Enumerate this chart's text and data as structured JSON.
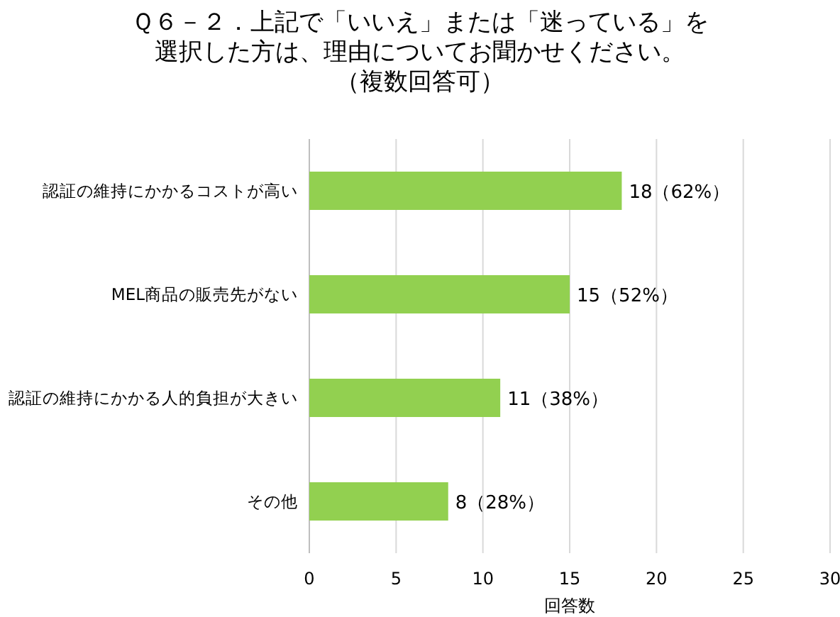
{
  "chart_data": {
    "type": "bar",
    "orientation": "horizontal",
    "title": "Ｑ６－２．上記で「いいえ」または「迷っている」を選択した方は、理由についてお聞かせください。",
    "subtitle": "（複数回答可）",
    "xlabel": "回答数",
    "categories": [
      "認証の維持にかかるコストが高い",
      "MEL商品の販売先がない",
      "認証の維持にかかる人的負担が大きい",
      "その他"
    ],
    "values": [
      18,
      15,
      11,
      8
    ],
    "value_labels": [
      "18（62%）",
      "15（52%）",
      "11（38%）",
      "8（28%）"
    ],
    "color": "#92d050",
    "xlim": [
      0,
      30
    ],
    "xticks": [
      0,
      5,
      10,
      15,
      20,
      25,
      30
    ],
    "grid": "x"
  }
}
